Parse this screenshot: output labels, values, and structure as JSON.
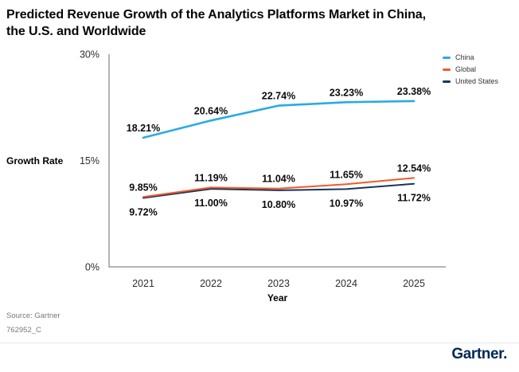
{
  "title": "Predicted Revenue Growth of the Analytics Platforms Market in China,\nthe U.S. and Worldwide",
  "chart_data": {
    "type": "line",
    "x": [
      "2021",
      "2022",
      "2023",
      "2024",
      "2025"
    ],
    "xlabel": "Year",
    "ylabel": "Growth Rate",
    "ylim": [
      0,
      30
    ],
    "yticks": [
      0,
      15,
      30
    ],
    "ytick_labels": [
      "0%",
      "15%",
      "30%"
    ],
    "grid": false,
    "legend_position": "top-right",
    "value_suffix": "%",
    "series": [
      {
        "name": "China",
        "color": "#29ABE2",
        "values": [
          18.21,
          20.64,
          22.74,
          23.23,
          23.38
        ],
        "label_position": "above"
      },
      {
        "name": "Global",
        "color": "#F05A28",
        "values": [
          9.85,
          11.19,
          11.04,
          11.65,
          12.54
        ],
        "label_position": "above"
      },
      {
        "name": "United States",
        "color": "#16365C",
        "values": [
          9.72,
          11.0,
          10.8,
          10.97,
          11.72
        ],
        "label_position": "below"
      }
    ]
  },
  "footer": {
    "source": "Source: Gartner",
    "code": "762952_C",
    "logo": "Gartner."
  }
}
